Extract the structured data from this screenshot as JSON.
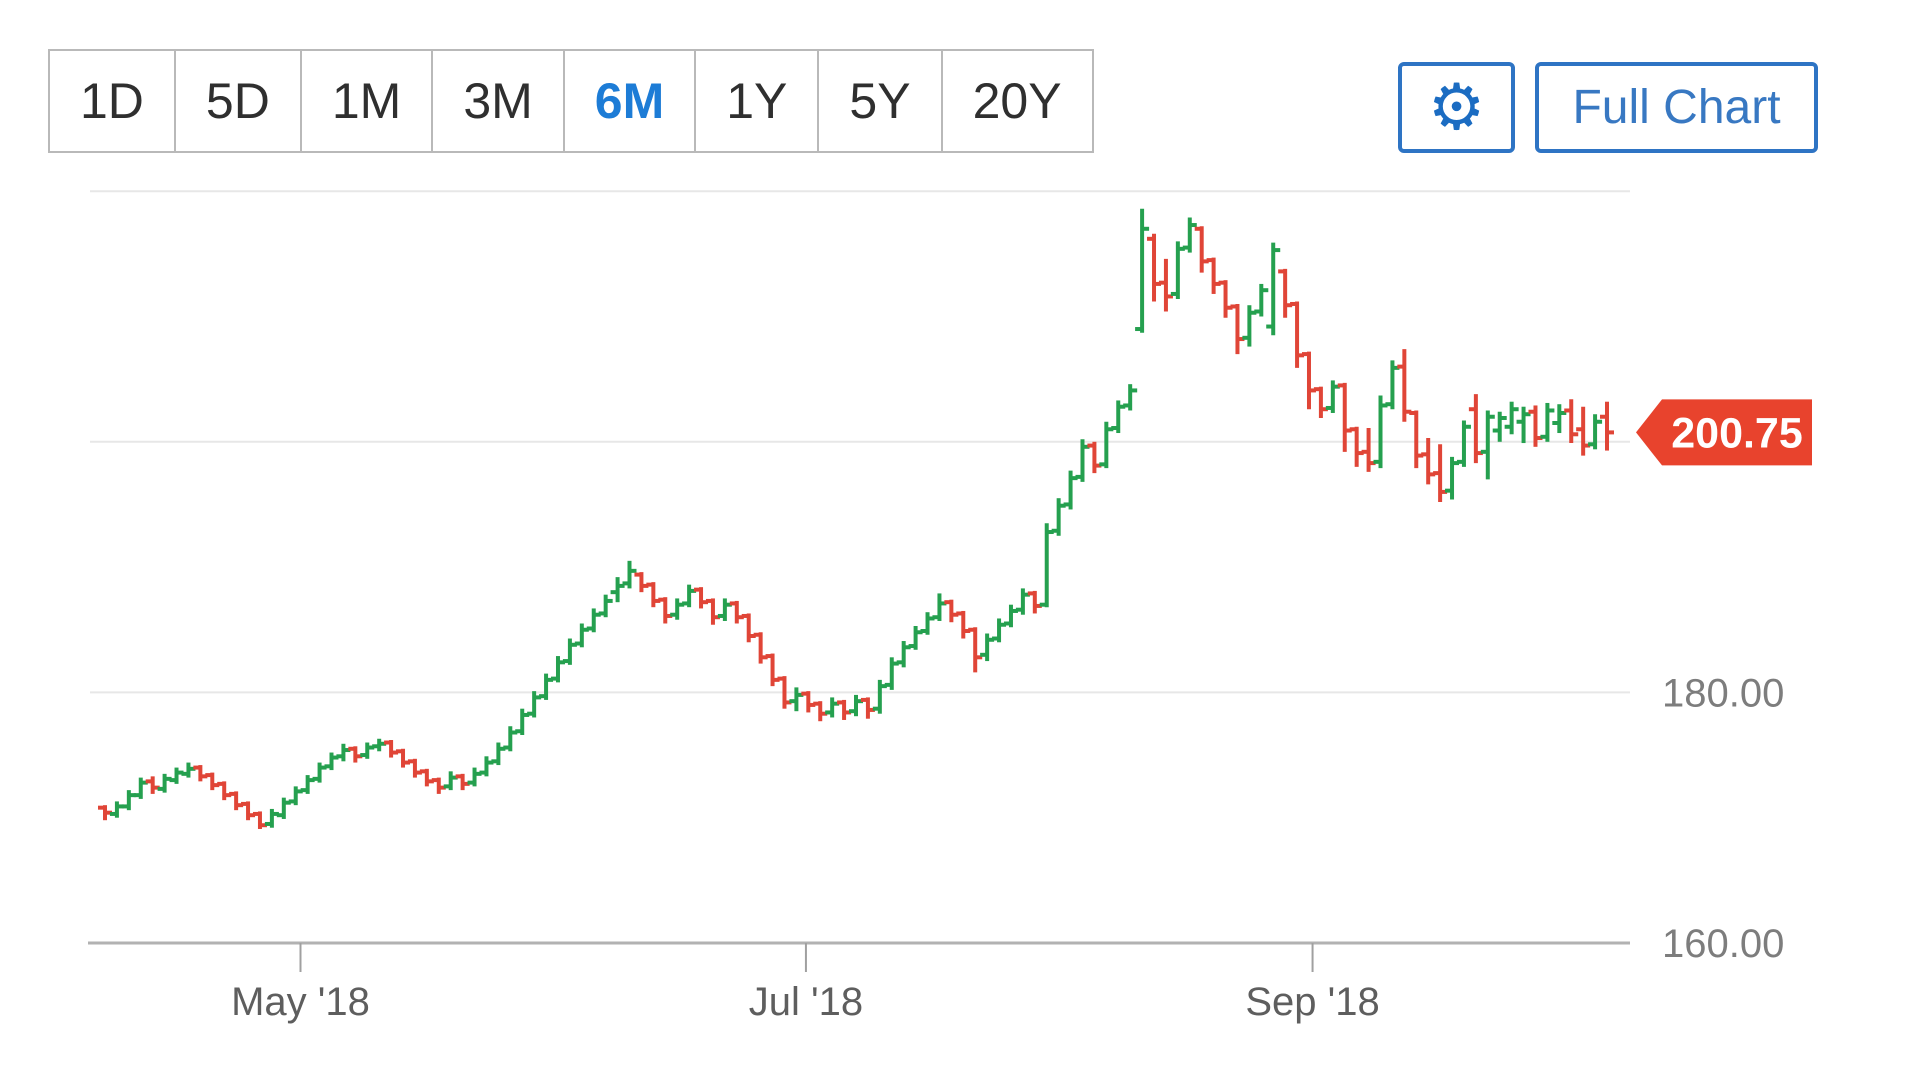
{
  "toolbar": {
    "ranges": [
      {
        "label": "1D",
        "selected": false
      },
      {
        "label": "5D",
        "selected": false
      },
      {
        "label": "1M",
        "selected": false
      },
      {
        "label": "3M",
        "selected": false
      },
      {
        "label": "6M",
        "selected": true
      },
      {
        "label": "1Y",
        "selected": false
      },
      {
        "label": "5Y",
        "selected": false
      },
      {
        "label": "20Y",
        "selected": false
      }
    ],
    "settings_icon": "gear-icon",
    "settings_glyph": "⚙",
    "full_chart_label": "Full Chart",
    "accent_blue": "#2e74c4"
  },
  "chart_data": {
    "type": "candlestick",
    "style": "ohlc-bars",
    "period": "6M daily",
    "title": "",
    "xlabel": "",
    "ylabel": "",
    "ylim": [
      158.5,
      224.0
    ],
    "grid": true,
    "gridline_values": [
      220,
      200,
      180
    ],
    "baseline_value": 160,
    "y_ticks": [
      {
        "label": "180.00",
        "value": 180
      },
      {
        "label": "160.00",
        "value": 160
      }
    ],
    "x_ticks": [
      {
        "label": "May '18",
        "bar_index": 16.4
      },
      {
        "label": "Jul '18",
        "bar_index": 58.8
      },
      {
        "label": "Sep '18",
        "bar_index": 101.3
      }
    ],
    "last_price": 200.75,
    "last_price_label": "200.75",
    "colors": {
      "up": "#25a04f",
      "down": "#e04537",
      "tag": "#e8432d",
      "grid": "#e7e7e7",
      "axis": "#b2b2b2",
      "tick": "#a0a0a0"
    },
    "bars_format": [
      "open",
      "high",
      "low",
      "close"
    ],
    "bars": [
      [
        170.8,
        171.0,
        169.8,
        170.4
      ],
      [
        170.3,
        171.3,
        170.0,
        170.9
      ],
      [
        170.9,
        172.2,
        170.6,
        171.8
      ],
      [
        171.8,
        173.2,
        171.5,
        172.8
      ],
      [
        172.9,
        173.3,
        171.9,
        172.4
      ],
      [
        172.3,
        173.5,
        172.0,
        173.1
      ],
      [
        173.0,
        174.0,
        172.7,
        173.6
      ],
      [
        173.5,
        174.4,
        173.2,
        173.9
      ],
      [
        174.0,
        174.2,
        172.9,
        173.3
      ],
      [
        173.4,
        173.6,
        172.2,
        172.6
      ],
      [
        172.7,
        172.9,
        171.4,
        171.8
      ],
      [
        171.9,
        172.1,
        170.6,
        171.0
      ],
      [
        171.1,
        171.3,
        169.8,
        170.2
      ],
      [
        170.3,
        170.5,
        169.1,
        169.4
      ],
      [
        169.5,
        170.7,
        169.2,
        170.3
      ],
      [
        170.2,
        171.6,
        169.9,
        171.2
      ],
      [
        171.3,
        172.5,
        171.0,
        172.1
      ],
      [
        172.2,
        173.4,
        171.9,
        173.0
      ],
      [
        173.1,
        174.4,
        172.8,
        174.0
      ],
      [
        174.1,
        175.2,
        173.8,
        174.8
      ],
      [
        174.9,
        175.9,
        174.5,
        175.4
      ],
      [
        175.5,
        175.7,
        174.4,
        174.9
      ],
      [
        175.0,
        176.0,
        174.7,
        175.6
      ],
      [
        175.7,
        176.3,
        175.3,
        175.9
      ],
      [
        176.0,
        176.2,
        174.8,
        175.2
      ],
      [
        175.3,
        175.5,
        174.0,
        174.4
      ],
      [
        174.5,
        174.7,
        173.2,
        173.6
      ],
      [
        173.7,
        173.9,
        172.5,
        172.9
      ],
      [
        173.0,
        173.2,
        171.9,
        172.4
      ],
      [
        172.5,
        173.7,
        172.2,
        173.2
      ],
      [
        173.3,
        173.5,
        172.2,
        172.7
      ],
      [
        172.8,
        174.0,
        172.5,
        173.5
      ],
      [
        173.6,
        174.9,
        173.3,
        174.4
      ],
      [
        174.5,
        176.0,
        174.2,
        175.5
      ],
      [
        175.6,
        177.3,
        175.3,
        176.8
      ],
      [
        176.9,
        178.7,
        176.6,
        178.2
      ],
      [
        178.3,
        180.1,
        178.0,
        179.6
      ],
      [
        179.7,
        181.5,
        179.4,
        181.0
      ],
      [
        181.1,
        182.9,
        180.8,
        182.4
      ],
      [
        182.5,
        184.3,
        182.2,
        183.8
      ],
      [
        183.9,
        185.5,
        183.6,
        185.0
      ],
      [
        185.1,
        186.7,
        184.8,
        186.2
      ],
      [
        186.3,
        187.8,
        186.0,
        187.3
      ],
      [
        188.0,
        189.2,
        187.2,
        188.5
      ],
      [
        188.7,
        190.5,
        188.3,
        189.7
      ],
      [
        189.4,
        189.6,
        188.0,
        188.5
      ],
      [
        188.6,
        188.8,
        186.8,
        187.3
      ],
      [
        187.4,
        187.6,
        185.5,
        186.1
      ],
      [
        186.2,
        187.5,
        185.8,
        187.0
      ],
      [
        187.1,
        188.6,
        186.8,
        188.1
      ],
      [
        188.2,
        188.4,
        186.7,
        187.2
      ],
      [
        187.3,
        187.5,
        185.4,
        186.0
      ],
      [
        186.1,
        187.5,
        185.7,
        187.0
      ],
      [
        187.1,
        187.3,
        185.5,
        186.0
      ],
      [
        186.1,
        186.3,
        184.0,
        184.5
      ],
      [
        184.6,
        184.8,
        182.3,
        182.8
      ],
      [
        182.9,
        183.1,
        180.5,
        181.0
      ],
      [
        181.1,
        181.3,
        178.7,
        179.2
      ],
      [
        179.3,
        180.4,
        178.5,
        179.8
      ],
      [
        179.9,
        180.1,
        178.4,
        179.0
      ],
      [
        179.1,
        179.3,
        177.7,
        178.3
      ],
      [
        178.4,
        179.6,
        178.0,
        179.1
      ],
      [
        179.2,
        179.4,
        177.8,
        178.4
      ],
      [
        178.5,
        179.8,
        178.1,
        179.3
      ],
      [
        179.4,
        179.6,
        177.9,
        178.6
      ],
      [
        178.7,
        181.0,
        178.3,
        180.5
      ],
      [
        180.6,
        182.8,
        180.2,
        182.3
      ],
      [
        182.4,
        184.1,
        182.0,
        183.6
      ],
      [
        183.7,
        185.3,
        183.4,
        184.8
      ],
      [
        184.9,
        186.4,
        184.6,
        185.9
      ],
      [
        186.0,
        187.9,
        185.7,
        187.1
      ],
      [
        187.2,
        187.4,
        185.6,
        186.2
      ],
      [
        186.3,
        186.5,
        184.3,
        184.9
      ],
      [
        185.0,
        185.2,
        181.6,
        182.8
      ],
      [
        183.0,
        184.7,
        182.5,
        184.2
      ],
      [
        184.3,
        185.9,
        184.0,
        185.4
      ],
      [
        185.5,
        187.0,
        185.2,
        186.5
      ],
      [
        186.6,
        188.3,
        186.2,
        187.8
      ],
      [
        187.9,
        188.1,
        186.3,
        186.9
      ],
      [
        187.0,
        193.5,
        186.8,
        192.8
      ],
      [
        192.9,
        195.5,
        192.5,
        194.9
      ],
      [
        195.0,
        197.7,
        194.6,
        197.1
      ],
      [
        197.2,
        200.2,
        196.8,
        199.6
      ],
      [
        199.7,
        200.0,
        197.5,
        198.1
      ],
      [
        198.2,
        201.6,
        197.9,
        201.0
      ],
      [
        201.1,
        203.3,
        200.7,
        202.8
      ],
      [
        202.9,
        204.6,
        202.5,
        204.1
      ],
      [
        209.0,
        218.6,
        208.7,
        217.0
      ],
      [
        216.2,
        216.6,
        211.2,
        212.6
      ],
      [
        212.7,
        214.6,
        210.4,
        211.6
      ],
      [
        211.8,
        216.0,
        211.4,
        215.4
      ],
      [
        215.5,
        217.9,
        215.1,
        217.3
      ],
      [
        217.0,
        217.2,
        213.5,
        214.4
      ],
      [
        214.5,
        214.7,
        211.8,
        212.6
      ],
      [
        212.7,
        212.9,
        209.9,
        210.7
      ],
      [
        210.8,
        211.0,
        207.0,
        208.2
      ],
      [
        208.3,
        210.9,
        207.6,
        210.3
      ],
      [
        210.4,
        212.6,
        210.0,
        212.1
      ],
      [
        209.2,
        215.9,
        208.5,
        215.3
      ],
      [
        213.6,
        213.8,
        209.9,
        210.9
      ],
      [
        211.0,
        211.2,
        205.9,
        206.9
      ],
      [
        207.0,
        207.2,
        202.6,
        204.1
      ],
      [
        204.2,
        204.4,
        201.9,
        202.6
      ],
      [
        202.7,
        204.9,
        202.3,
        204.4
      ],
      [
        204.5,
        204.7,
        199.2,
        200.9
      ],
      [
        201.0,
        201.2,
        198.0,
        199.1
      ],
      [
        199.2,
        201.1,
        197.6,
        198.3
      ],
      [
        198.4,
        203.7,
        197.9,
        202.9
      ],
      [
        203.0,
        206.5,
        202.6,
        205.9
      ],
      [
        206.0,
        207.4,
        201.6,
        202.4
      ],
      [
        202.3,
        202.5,
        197.9,
        198.9
      ],
      [
        199.0,
        200.3,
        196.6,
        197.4
      ],
      [
        197.5,
        199.8,
        195.2,
        196.0
      ],
      [
        196.1,
        198.8,
        195.4,
        198.3
      ],
      [
        198.4,
        201.7,
        198.0,
        201.2
      ],
      [
        202.6,
        203.8,
        198.3,
        199.1
      ],
      [
        199.2,
        202.5,
        197.0,
        202.0
      ],
      [
        200.9,
        202.4,
        200.0,
        201.9
      ],
      [
        201.2,
        203.2,
        200.6,
        202.6
      ],
      [
        201.6,
        202.8,
        199.9,
        202.2
      ],
      [
        202.4,
        202.9,
        199.6,
        200.3
      ],
      [
        200.4,
        203.1,
        200.0,
        202.5
      ],
      [
        201.5,
        203.0,
        200.7,
        202.3
      ],
      [
        202.5,
        203.4,
        199.9,
        200.6
      ],
      [
        201.0,
        202.8,
        198.9,
        199.7
      ],
      [
        199.8,
        202.2,
        199.4,
        201.6
      ],
      [
        202.0,
        203.2,
        199.3,
        200.75
      ]
    ]
  }
}
